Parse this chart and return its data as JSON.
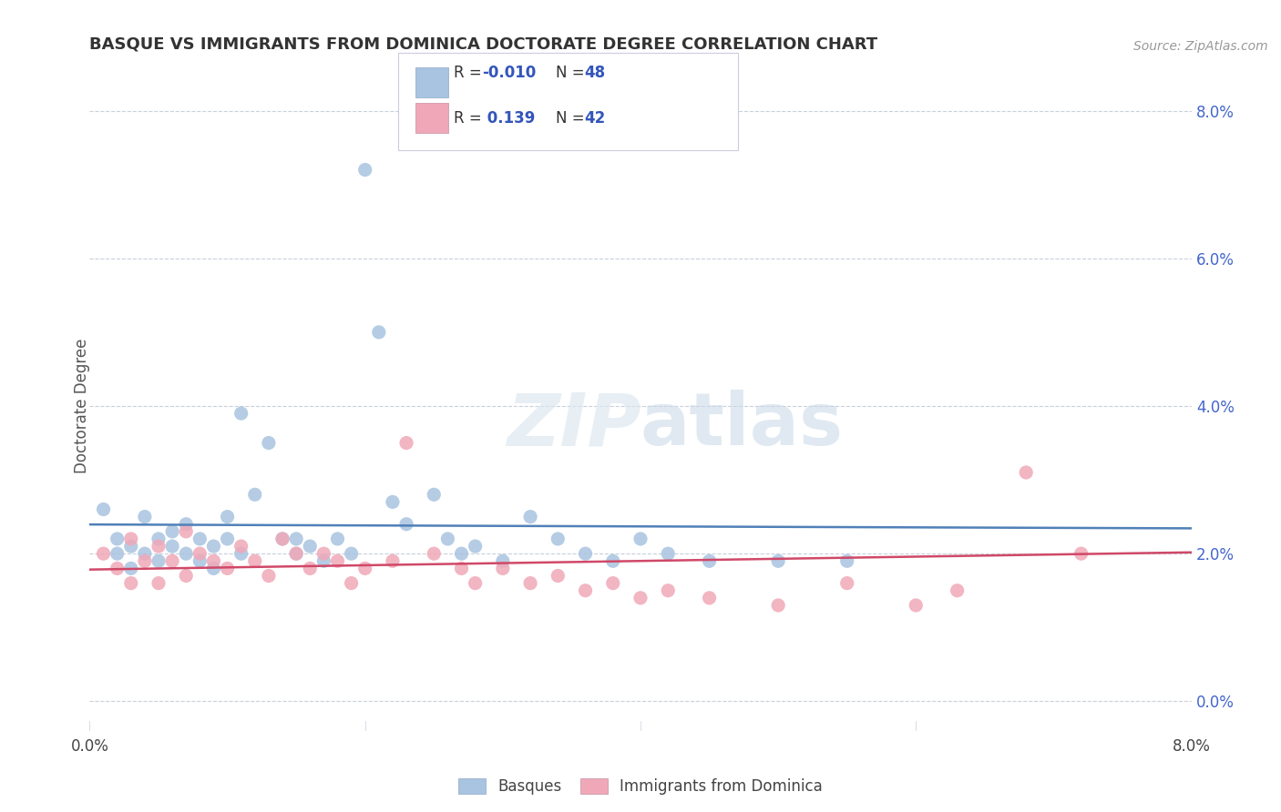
{
  "title": "BASQUE VS IMMIGRANTS FROM DOMINICA DOCTORATE DEGREE CORRELATION CHART",
  "source_text": "Source: ZipAtlas.com",
  "ylabel": "Doctorate Degree",
  "legend_label1": "Basques",
  "legend_label2": "Immigrants from Dominica",
  "color_blue": "#a8c4e0",
  "color_pink": "#f0a8b8",
  "line_color_blue": "#5080b8",
  "line_color_pink": "#d04868",
  "grid_color": "#c8d0dc",
  "xlim": [
    0.0,
    0.08
  ],
  "ylim": [
    -0.004,
    0.084
  ],
  "ytick_vals": [
    0.0,
    0.02,
    0.04,
    0.06,
    0.08
  ],
  "xtick_vals": [
    0.0,
    0.08
  ],
  "R_blue": -0.01,
  "R_pink": 0.139,
  "basques_x": [
    0.001,
    0.002,
    0.002,
    0.003,
    0.003,
    0.004,
    0.004,
    0.005,
    0.005,
    0.006,
    0.006,
    0.007,
    0.007,
    0.008,
    0.008,
    0.009,
    0.009,
    0.01,
    0.01,
    0.011,
    0.011,
    0.012,
    0.013,
    0.014,
    0.015,
    0.015,
    0.016,
    0.017,
    0.018,
    0.019,
    0.02,
    0.021,
    0.022,
    0.023,
    0.025,
    0.026,
    0.027,
    0.028,
    0.03,
    0.032,
    0.034,
    0.036,
    0.038,
    0.04,
    0.042,
    0.045,
    0.05,
    0.055
  ],
  "basques_y": [
    0.026,
    0.022,
    0.02,
    0.021,
    0.018,
    0.025,
    0.02,
    0.022,
    0.019,
    0.023,
    0.021,
    0.024,
    0.02,
    0.022,
    0.019,
    0.021,
    0.018,
    0.025,
    0.022,
    0.02,
    0.039,
    0.028,
    0.035,
    0.022,
    0.022,
    0.02,
    0.021,
    0.019,
    0.022,
    0.02,
    0.072,
    0.05,
    0.027,
    0.024,
    0.028,
    0.022,
    0.02,
    0.021,
    0.019,
    0.025,
    0.022,
    0.02,
    0.019,
    0.022,
    0.02,
    0.019,
    0.019,
    0.019
  ],
  "dominica_x": [
    0.001,
    0.002,
    0.003,
    0.003,
    0.004,
    0.005,
    0.005,
    0.006,
    0.007,
    0.007,
    0.008,
    0.009,
    0.01,
    0.011,
    0.012,
    0.013,
    0.014,
    0.015,
    0.016,
    0.017,
    0.018,
    0.019,
    0.02,
    0.022,
    0.023,
    0.025,
    0.027,
    0.028,
    0.03,
    0.032,
    0.034,
    0.036,
    0.038,
    0.04,
    0.042,
    0.045,
    0.05,
    0.055,
    0.06,
    0.063,
    0.068,
    0.072
  ],
  "dominica_y": [
    0.02,
    0.018,
    0.022,
    0.016,
    0.019,
    0.021,
    0.016,
    0.019,
    0.023,
    0.017,
    0.02,
    0.019,
    0.018,
    0.021,
    0.019,
    0.017,
    0.022,
    0.02,
    0.018,
    0.02,
    0.019,
    0.016,
    0.018,
    0.019,
    0.035,
    0.02,
    0.018,
    0.016,
    0.018,
    0.016,
    0.017,
    0.015,
    0.016,
    0.014,
    0.015,
    0.014,
    0.013,
    0.016,
    0.013,
    0.015,
    0.031,
    0.02
  ]
}
